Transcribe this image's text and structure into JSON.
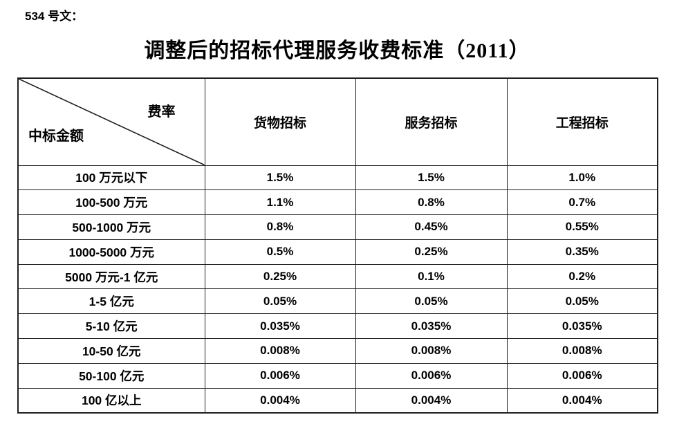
{
  "doc_label": "534 号文：",
  "title": "调整后的招标代理服务收费标准（2011）",
  "table": {
    "corner": {
      "top_right": "费率",
      "bottom_left": "中标金额"
    },
    "columns": [
      "货物招标",
      "服务招标",
      "工程招标"
    ],
    "rows": [
      {
        "label": "100 万元以下",
        "values": [
          "1.5%",
          "1.5%",
          "1.0%"
        ]
      },
      {
        "label": "100-500 万元",
        "values": [
          "1.1%",
          "0.8%",
          "0.7%"
        ]
      },
      {
        "label": "500-1000 万元",
        "values": [
          "0.8%",
          "0.45%",
          "0.55%"
        ]
      },
      {
        "label": "1000-5000 万元",
        "values": [
          "0.5%",
          "0.25%",
          "0.35%"
        ]
      },
      {
        "label": "5000 万元-1 亿元",
        "values": [
          "0.25%",
          "0.1%",
          "0.2%"
        ]
      },
      {
        "label": "1-5 亿元",
        "values": [
          "0.05%",
          "0.05%",
          "0.05%"
        ]
      },
      {
        "label": "5-10 亿元",
        "values": [
          "0.035%",
          "0.035%",
          "0.035%"
        ]
      },
      {
        "label": "10-50 亿元",
        "values": [
          "0.008%",
          "0.008%",
          "0.008%"
        ]
      },
      {
        "label": "50-100 亿元",
        "values": [
          "0.006%",
          "0.006%",
          "0.006%"
        ]
      },
      {
        "label": "100 亿以上",
        "values": [
          "0.004%",
          "0.004%",
          "0.004%"
        ]
      }
    ]
  },
  "colors": {
    "text": "#000000",
    "border": "#1f1f1f",
    "background": "#ffffff"
  }
}
